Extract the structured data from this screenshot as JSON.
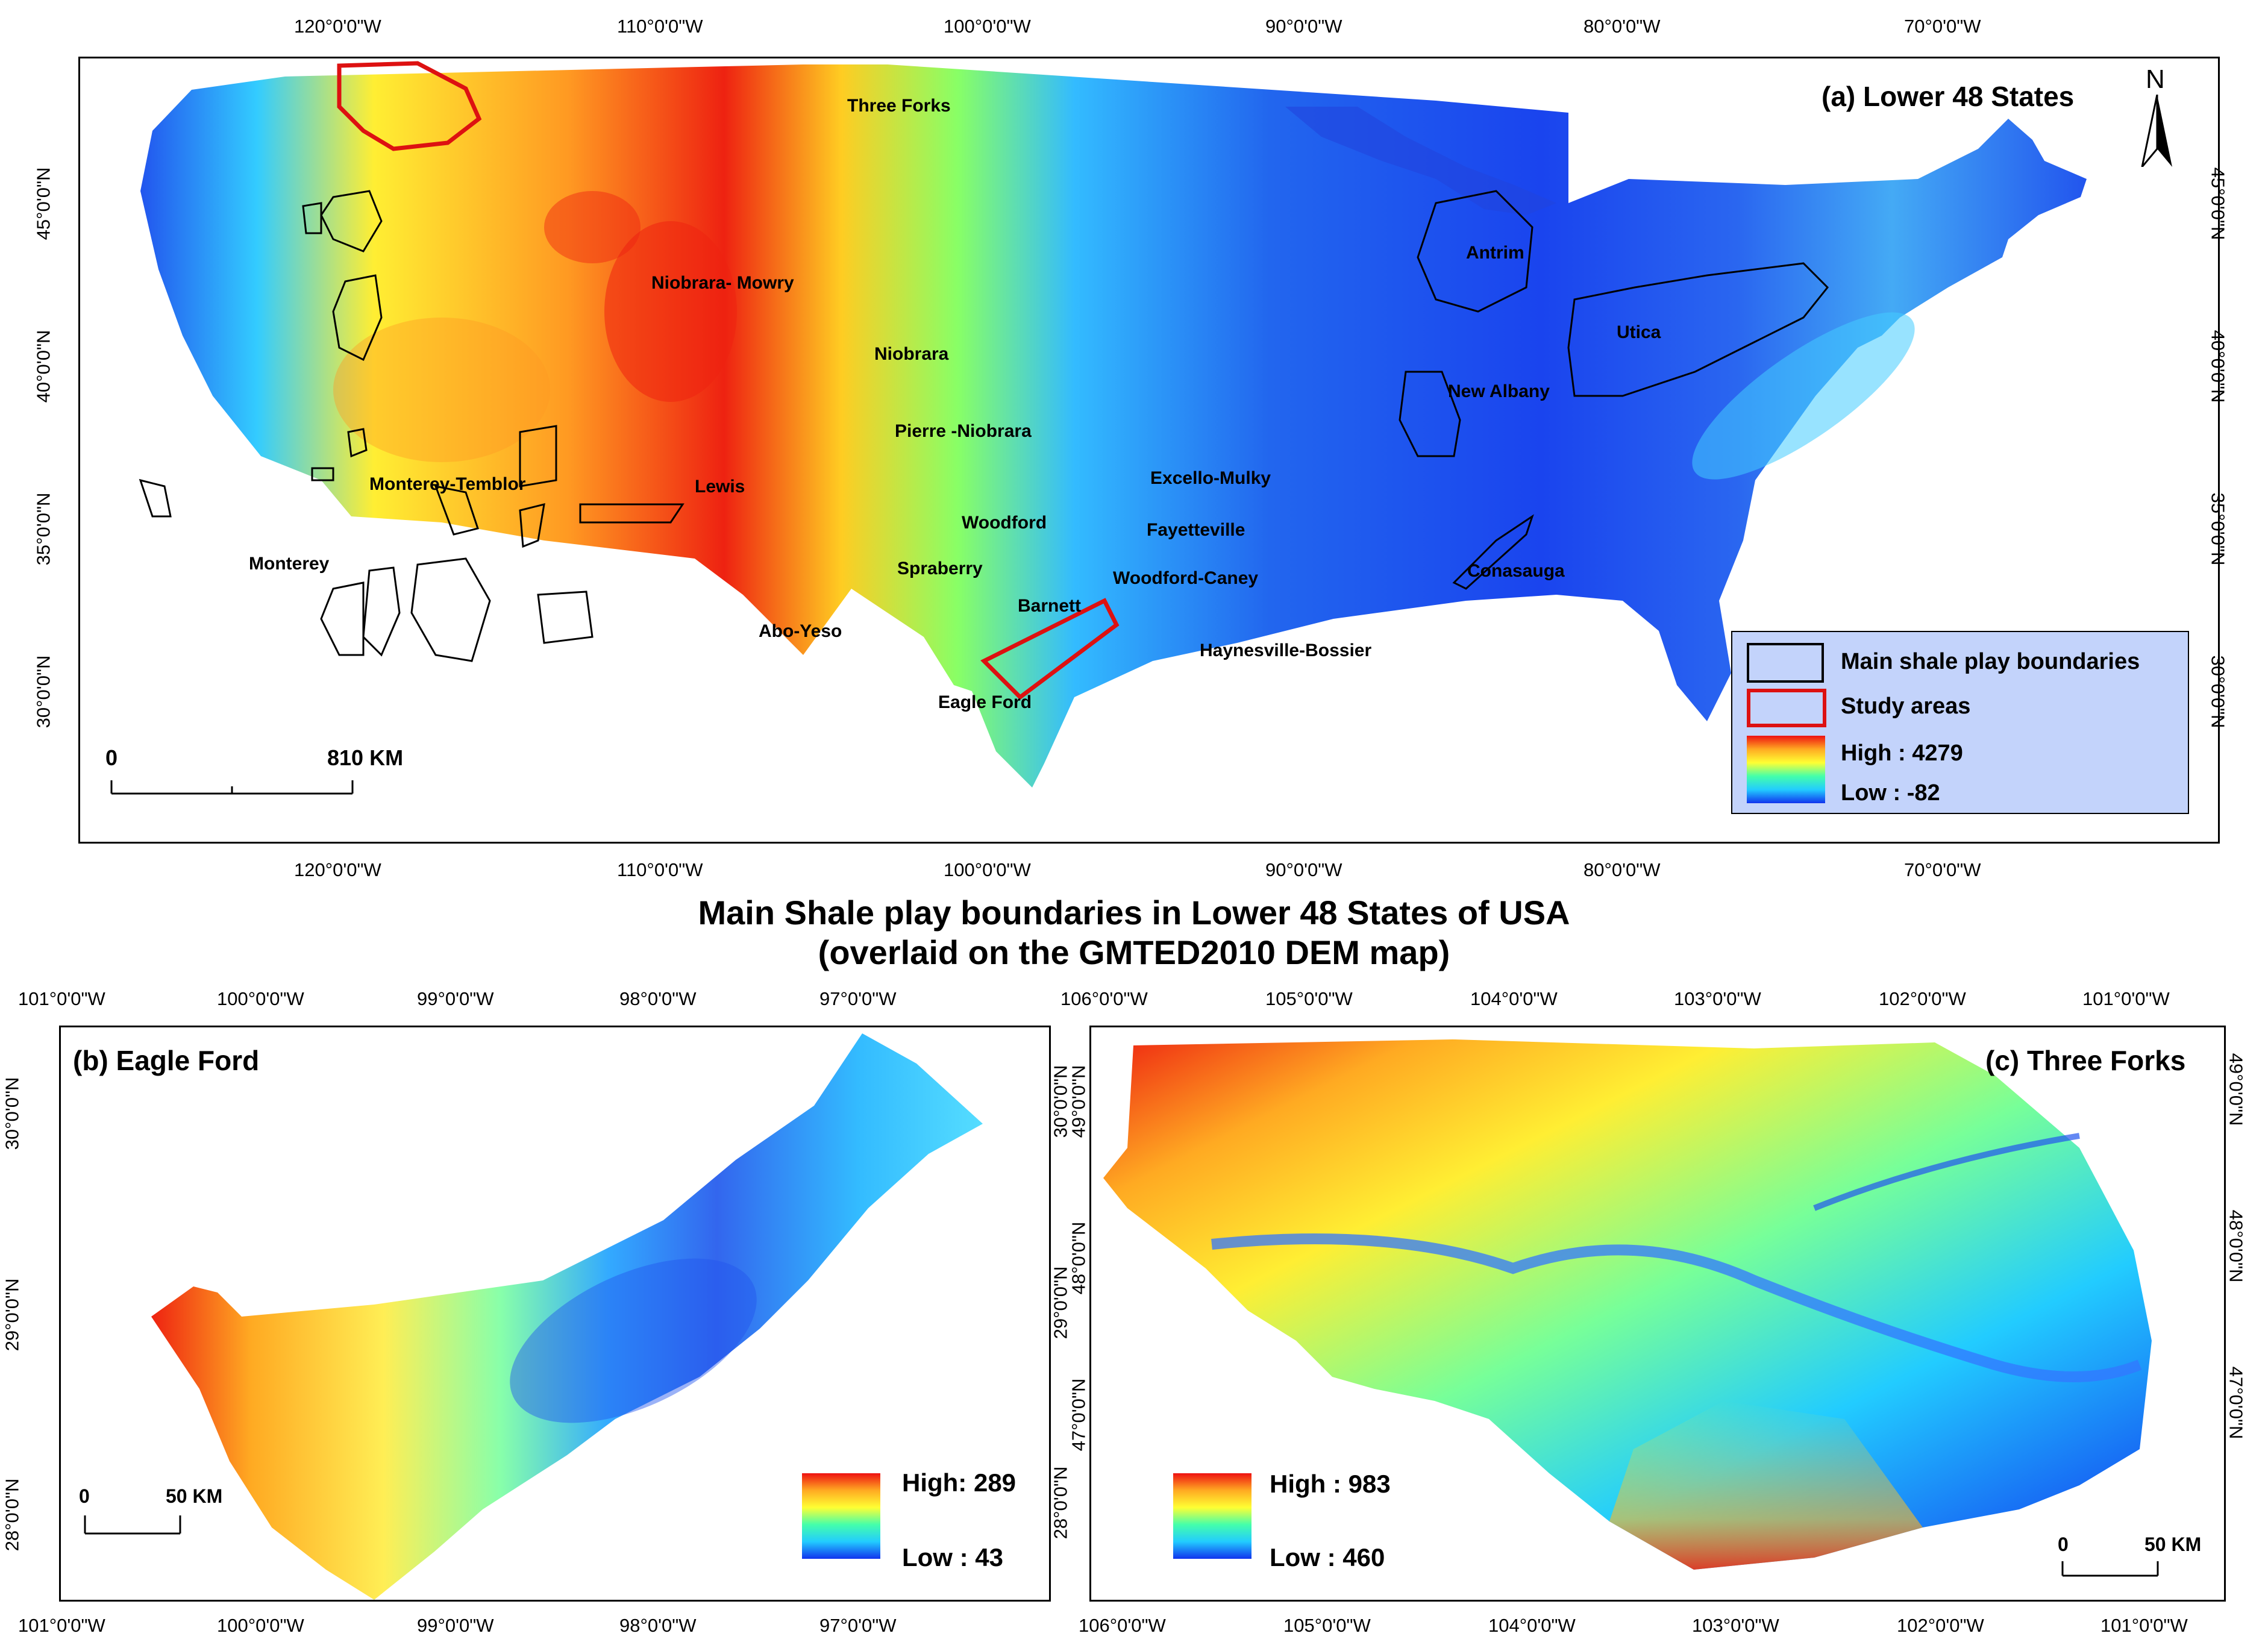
{
  "title_line1": "Main Shale play boundaries in Lower 48 States of USA",
  "title_line2": "(overlaid on the GMTED2010 DEM map)",
  "panel_a": {
    "title": "(a) Lower 48 States",
    "north": "N",
    "lon_ticks": [
      "120°0'0\"W",
      "110°0'0\"W",
      "100°0'0\"W",
      "90°0'0\"W",
      "80°0'0\"W",
      "70°0'0\"W"
    ],
    "lat_ticks": [
      "45°0'0\"N",
      "40°0'0\"N",
      "35°0'0\"N",
      "30°0'0\"N"
    ],
    "scale_zero": "0",
    "scale_label": "810 KM",
    "legend": {
      "boundaries": "Main shale play boundaries",
      "study": "Study areas",
      "high": "High : 4279",
      "low": "Low : -82"
    },
    "plays": {
      "three_forks": "Three Forks",
      "niobrara_mowry": "Niobrara- Mowry",
      "niobrara": "Niobrara",
      "pierre": "Pierre -Niobrara",
      "lewis": "Lewis",
      "monterey_temblor": "Monterey-Temblor",
      "monterey": "Monterey",
      "spraberry": "Spraberry",
      "abo_yeso": "Abo-Yeso",
      "barnett": "Barnett",
      "woodford": "Woodford",
      "woodford_caney": "Woodford-Caney",
      "fayetteville": "Fayetteville",
      "excello": "Excello-Mulky",
      "haynesville": "Haynesville-Bossier",
      "eagle_ford": "Eagle Ford",
      "antrim": "Antrim",
      "utica": "Utica",
      "new_albany": "New Albany",
      "conasauga": "Conasauga"
    }
  },
  "panel_b": {
    "title": "(b) Eagle Ford",
    "lon_ticks": [
      "101°0'0\"W",
      "100°0'0\"W",
      "99°0'0\"W",
      "98°0'0\"W",
      "97°0'0\"W"
    ],
    "lat_ticks": [
      "30°0'0\"N",
      "29°0'0\"N",
      "28°0'0\"N"
    ],
    "scale_zero": "0",
    "scale_label": "50  KM",
    "high": "High: 289",
    "low": "Low : 43"
  },
  "panel_c": {
    "title": "(c) Three Forks",
    "lon_ticks": [
      "106°0'0\"W",
      "105°0'0\"W",
      "104°0'0\"W",
      "103°0'0\"W",
      "102°0'0\"W",
      "101°0'0\"W"
    ],
    "lat_ticks": [
      "49°0'0\"N",
      "48°0'0\"N",
      "47°0'0\"N"
    ],
    "scale_zero": "0",
    "scale_label": "50  KM",
    "high": "High : 983",
    "low": "Low : 460"
  },
  "colors": {
    "dem_high": "#e81010",
    "dem_mid_high": "#ffff33",
    "dem_mid": "#33ddff",
    "dem_low": "#1133ee",
    "study_outline": "#dd1111",
    "boundary_outline": "#000000",
    "legend_bg": "#c3d3fb"
  }
}
